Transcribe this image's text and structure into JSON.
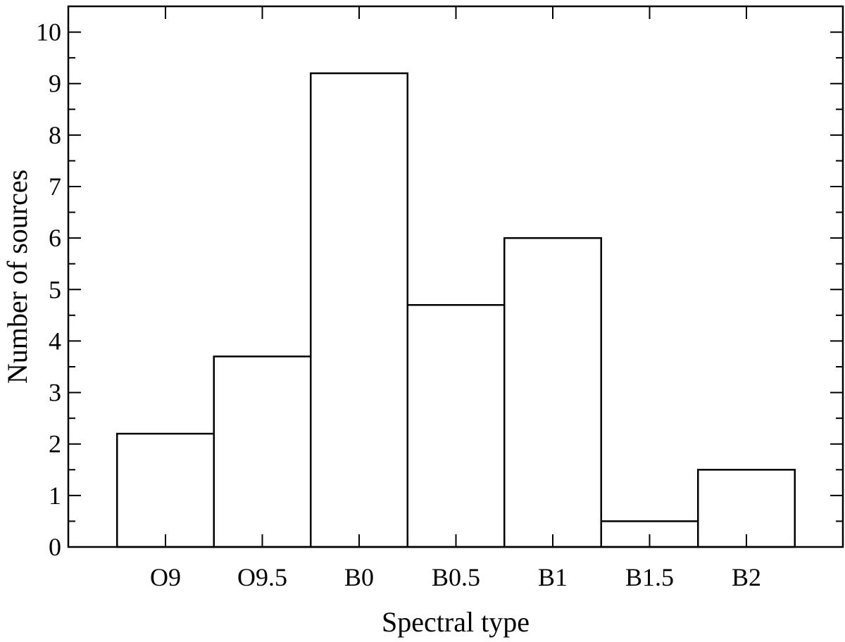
{
  "chart_data": {
    "type": "bar",
    "categories": [
      "O9",
      "O9.5",
      "B0",
      "B0.5",
      "B1",
      "B1.5",
      "B2"
    ],
    "values": [
      2.2,
      3.7,
      9.2,
      4.7,
      6.0,
      0.5,
      1.5
    ],
    "xlabel": "Spectral type",
    "ylabel": "Number of sources",
    "ylim": [
      0,
      10.5
    ],
    "yticks": [
      "0",
      "1",
      "2",
      "3",
      "4",
      "5",
      "6",
      "7",
      "8",
      "9",
      "10"
    ],
    "grid": false,
    "legend": "none",
    "bar_fill": "#ffffff",
    "bar_edge": "#000000"
  }
}
